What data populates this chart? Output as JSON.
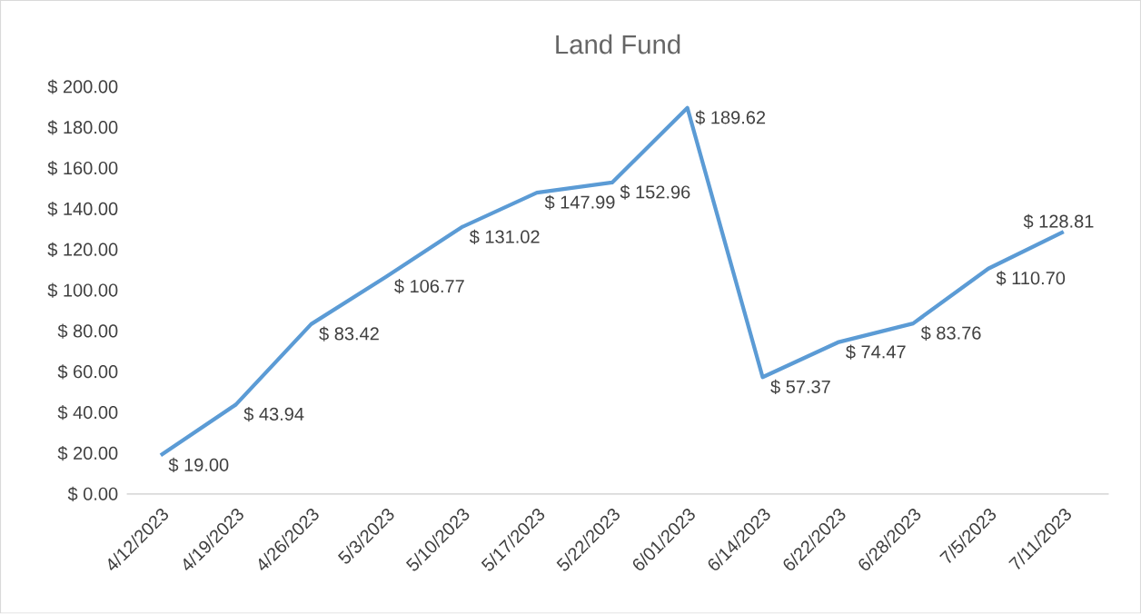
{
  "chart_data": {
    "type": "line",
    "title": "Land Fund",
    "categories": [
      "4/12/2023",
      "4/19/2023",
      "4/26/2023",
      "5/3/2023",
      "5/10/2023",
      "5/17/2023",
      "5/22/2023",
      "6/01/2023",
      "6/14/2023",
      "6/22/2023",
      "6/28/2023",
      "7/5/2023",
      "7/11/2023"
    ],
    "series": [
      {
        "color": "#5b9bd5",
        "values": [
          19.0,
          43.94,
          83.42,
          106.77,
          131.02,
          147.99,
          152.96,
          189.62,
          57.37,
          74.47,
          83.76,
          110.7,
          128.81
        ],
        "value_labels": [
          "$ 19.00",
          "$ 43.94",
          "$ 83.42",
          "$ 106.77",
          "$ 131.02",
          "$ 147.99",
          "$ 152.96",
          "$ 189.62",
          "$ 57.37",
          "$ 74.47",
          "$ 83.76",
          "$ 110.70",
          "$ 128.81"
        ]
      }
    ],
    "ylim": [
      0,
      200
    ],
    "yticks": [
      {
        "value": 0,
        "label": "$ 0.00"
      },
      {
        "value": 20,
        "label": "$ 20.00"
      },
      {
        "value": 40,
        "label": "$ 40.00"
      },
      {
        "value": 60,
        "label": "$ 60.00"
      },
      {
        "value": 80,
        "label": "$ 80.00"
      },
      {
        "value": 100,
        "label": "$ 100.00"
      },
      {
        "value": 120,
        "label": "$ 120.00"
      },
      {
        "value": 140,
        "label": "$ 140.00"
      },
      {
        "value": 160,
        "label": "$ 160.00"
      },
      {
        "value": 180,
        "label": "$ 180.00"
      },
      {
        "value": 200,
        "label": "$ 200.00"
      }
    ],
    "grid": false,
    "legend": false,
    "marker": "none",
    "line_style": "solid"
  }
}
